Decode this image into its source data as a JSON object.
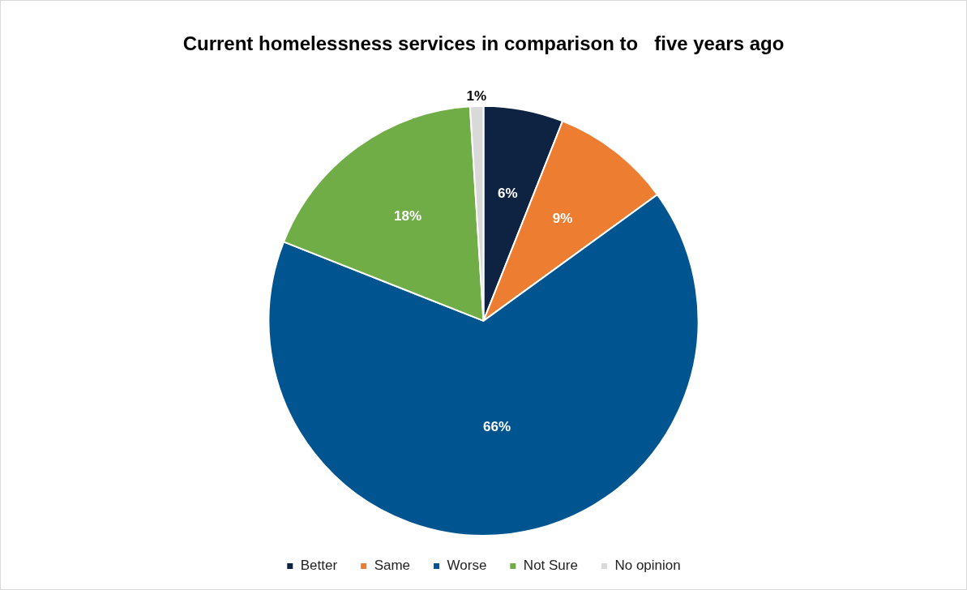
{
  "chart_data": {
    "type": "pie",
    "title": "Current homelessness services in comparison to   five years ago",
    "categories": [
      "Better",
      "Same",
      "Worse",
      "Not Sure",
      "No opinion"
    ],
    "values": [
      6,
      9,
      66,
      18,
      1
    ],
    "colors": [
      "#0e2341",
      "#ed7d31",
      "#005591",
      "#70ad47",
      "#d9d9d9"
    ],
    "value_labels": [
      "6%",
      "9%",
      "66%",
      "18%",
      "1%"
    ],
    "legend": "bottom"
  }
}
